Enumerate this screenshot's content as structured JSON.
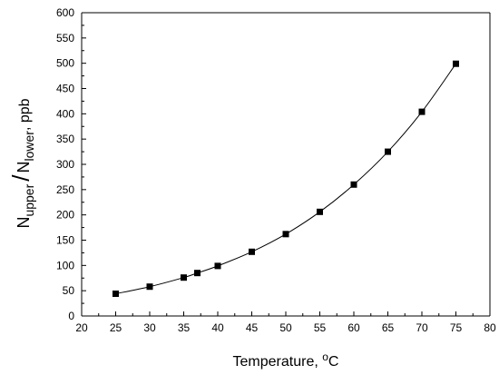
{
  "chart_data": {
    "type": "scatter",
    "title": "",
    "xlabel": "Temperature, ",
    "xlabel_sup": "o",
    "xlabel_unit": "C",
    "ylabel_num": "N",
    "ylabel_num_sub": "upper",
    "ylabel_slash": "/",
    "ylabel_den": "N",
    "ylabel_den_sub": "lower",
    "ylabel_unit": ", ppb",
    "xlim": [
      20,
      80
    ],
    "ylim": [
      0,
      600
    ],
    "xticks": [
      20,
      25,
      30,
      35,
      40,
      45,
      50,
      55,
      60,
      65,
      70,
      75,
      80
    ],
    "yticks": [
      0,
      50,
      100,
      150,
      200,
      250,
      300,
      350,
      400,
      450,
      500,
      550,
      600
    ],
    "grid": false,
    "legend": "none",
    "marker": "square",
    "connected_smooth_line": true,
    "color": "#000000",
    "series": [
      {
        "x": [
          25,
          30,
          35,
          37,
          40,
          45,
          50,
          55,
          60,
          65,
          70,
          75
        ],
        "y": [
          44,
          58,
          76,
          85,
          99,
          127,
          162,
          206,
          260,
          325,
          404,
          499
        ]
      }
    ]
  }
}
